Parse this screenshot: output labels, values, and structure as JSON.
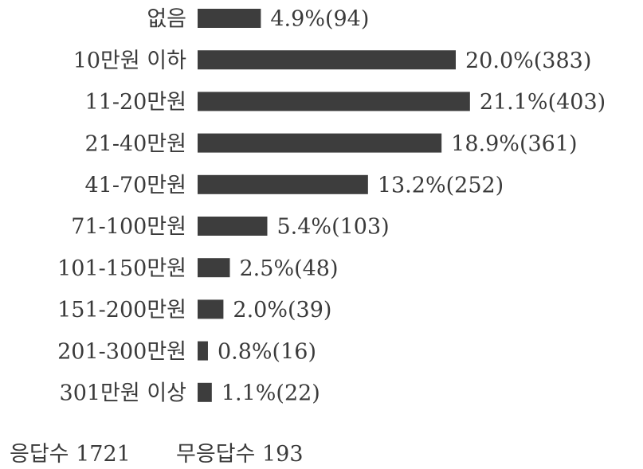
{
  "chart_data": {
    "type": "bar",
    "orientation": "horizontal",
    "categories": [
      "없음",
      "10만원 이하",
      "11-20만원",
      "21-40만원",
      "41-70만원",
      "71-100만원",
      "101-150만원",
      "151-200만원",
      "201-300만원",
      "301만원 이상"
    ],
    "values": [
      4.9,
      20.0,
      21.1,
      18.9,
      13.2,
      5.4,
      2.5,
      2.0,
      0.8,
      1.1
    ],
    "counts": [
      94,
      383,
      403,
      361,
      252,
      103,
      48,
      39,
      16,
      22
    ],
    "data_labels": [
      "4.9%(94)",
      "20.0%(383)",
      "21.1%(403)",
      "18.9%(361)",
      "13.2%(252)",
      "5.4%(103)",
      "2.5%(48)",
      "2.0%(39)",
      "0.8%(16)",
      "1.1%(22)"
    ],
    "unit": "%",
    "bar_color": "#3d3d3d",
    "grid": false,
    "legend": "none"
  },
  "footer": {
    "respondents_label": "응답수",
    "respondents_value": "1721",
    "nonrespondents_label": "무응답수",
    "nonrespondents_value": "193"
  }
}
